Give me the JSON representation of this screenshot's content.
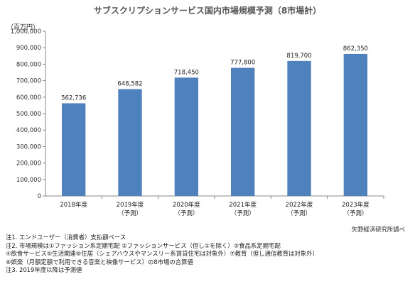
{
  "title": "サブスクリプションサービス国内市場規模予測（8市場計）",
  "chart_data": {
    "type": "bar",
    "title": "サブスクリプションサービス国内市場規模予測（8市場計）",
    "ylabel": "（百万円）",
    "xlabel": "",
    "categories": [
      "2018年度",
      "2019年度",
      "2020年度",
      "2021年度",
      "2022年度",
      "2023年度"
    ],
    "category_notes": [
      "",
      "（予測）",
      "（予測）",
      "（予測）",
      "（予測）",
      "（予測）"
    ],
    "values": [
      562736,
      648582,
      718450,
      777800,
      819700,
      862350
    ],
    "value_labels": [
      "562,736",
      "648,582",
      "718,450",
      "777,800",
      "819,700",
      "862,350"
    ],
    "ylim": [
      0,
      1000000
    ],
    "yticks": [
      0,
      100000,
      200000,
      300000,
      400000,
      500000,
      600000,
      700000,
      800000,
      900000,
      1000000
    ],
    "ytick_labels": [
      "0",
      "100,000",
      "200,000",
      "300,000",
      "400,000",
      "500,000",
      "600,000",
      "700,000",
      "800,000",
      "900,000",
      "1,000,000"
    ],
    "grid": false,
    "bar_color": "#4f81bd"
  },
  "source": "矢野経済研究所調べ",
  "notes": [
    "注1. エンドユーザー（消費者）支払額ベース",
    "注2. 市場規模は①ファッション系定期宅配 ②ファッションサービス（但し①を除く）③食品系定期宅配",
    "④飲食サービス⑤生活関連⑥住居（シェアハウスやマンスリー系賃貸住宅は対象外）⑦教育（但し通信教育は対象外）",
    "⑧娯楽（月額定額で利用できる音楽と映像サービス）の8市場の合算値",
    "注3. 2019年度以降は予測値"
  ]
}
